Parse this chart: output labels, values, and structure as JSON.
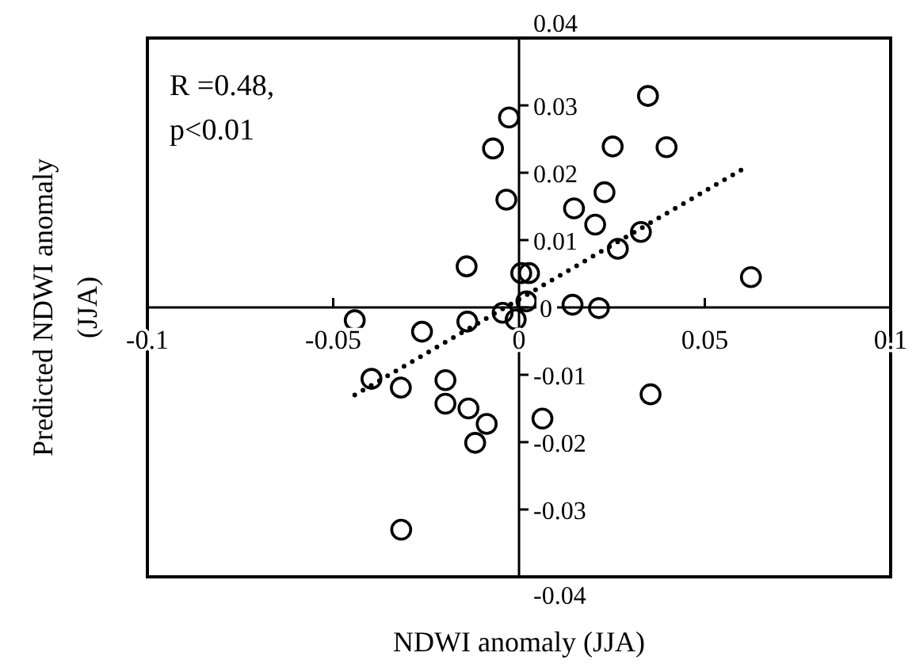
{
  "chart_data": {
    "type": "scatter",
    "xlabel": "NDWI anomaly (JJA)",
    "ylabel": "Predicted NDWI anomaly (JJA)",
    "xlim": [
      -0.1,
      0.1
    ],
    "xticks": [
      -0.1,
      -0.05,
      0,
      0.05,
      0.1
    ],
    "ylim": [
      -0.04,
      0.04
    ],
    "yticks": [
      -0.04,
      -0.03,
      -0.02,
      -0.01,
      0,
      0.01,
      0.02,
      0.03,
      0.04
    ],
    "grid": false,
    "marker": "circle",
    "annotations": [
      "R =0.48,",
      "p<0.01"
    ],
    "series": [
      {
        "color": "#000000",
        "x": [
          -0.0027,
          -0.007,
          -0.0034,
          0.0347,
          0.0252,
          0.0397,
          0.023,
          0.0148,
          0.0205,
          0.0328,
          0.0266,
          0.0624,
          0.0006,
          0.0027,
          0.002,
          0.0144,
          0.0215,
          -0.0141,
          -0.0442,
          -0.0261,
          -0.0139,
          -0.0044,
          -0.0009,
          -0.0397,
          -0.0318,
          -0.0198,
          -0.0198,
          -0.0136,
          -0.0087,
          -0.0118,
          -0.0317,
          0.0354,
          0.0063
        ],
        "values": [
          0.0282,
          0.0236,
          0.016,
          0.0314,
          0.0239,
          0.0238,
          0.0171,
          0.0147,
          0.0123,
          0.0112,
          0.0087,
          0.0045,
          0.0051,
          0.0051,
          0.0009,
          0.0004,
          -0.0001,
          0.0061,
          -0.0019,
          -0.0036,
          -0.0021,
          -0.0008,
          -0.0018,
          -0.0106,
          -0.0119,
          -0.0108,
          -0.0143,
          -0.015,
          -0.0173,
          -0.0201,
          -0.033,
          -0.0129,
          -0.0165
        ]
      },
      {
        "type": "line",
        "color": "#000000",
        "line_style": "dotted",
        "marker": "none",
        "x": [
          -0.0442,
          0.0613
        ],
        "values": [
          -0.013,
          0.0209
        ]
      }
    ]
  }
}
